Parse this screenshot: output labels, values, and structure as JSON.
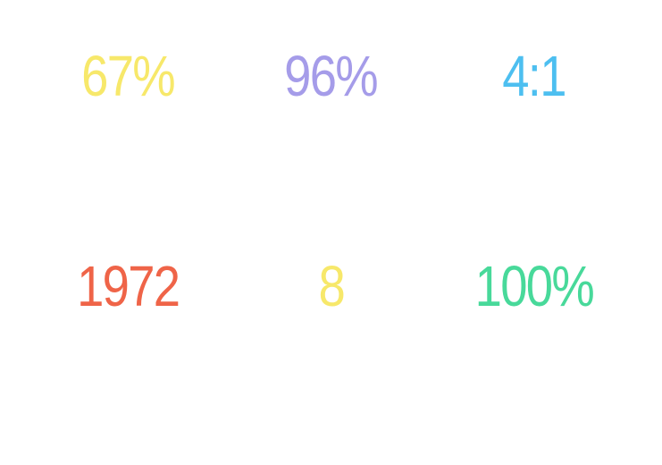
{
  "stats": [
    {
      "text": "67%",
      "color": "#f7e86a"
    },
    {
      "text": "96%",
      "color": "#a59ce9"
    },
    {
      "text": "4:1",
      "color": "#4dbff0"
    },
    {
      "text": "1972",
      "color": "#ef6448"
    },
    {
      "text": "8",
      "color": "#f7e86a"
    },
    {
      "text": "100%",
      "color": "#48d99a"
    }
  ]
}
